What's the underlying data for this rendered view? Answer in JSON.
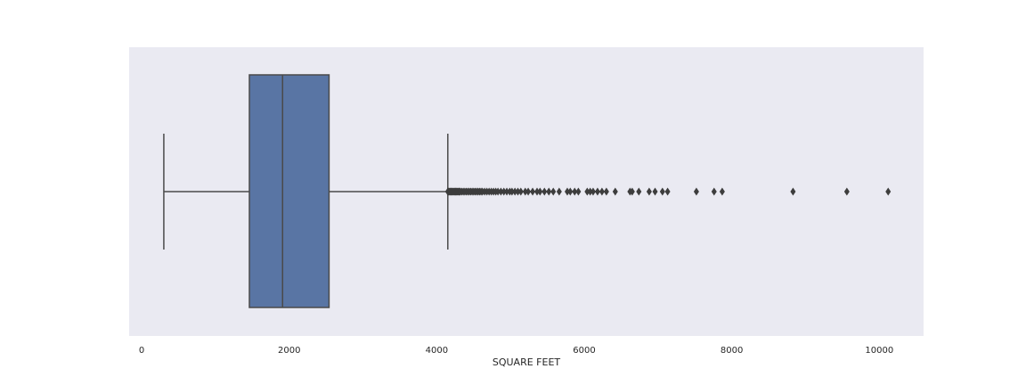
{
  "chart_data": {
    "type": "box",
    "orientation": "horizontal",
    "title": "",
    "xlabel": "SQUARE FEET",
    "ylabel": "",
    "xlim": [
      -170,
      10600
    ],
    "xticks": [
      0,
      2000,
      4000,
      6000,
      8000,
      10000
    ],
    "xtick_labels": [
      "0",
      "2000",
      "4000",
      "6000",
      "8000",
      "10000"
    ],
    "grid": false,
    "box": {
      "whisker_low": 300,
      "q1": 1460,
      "median": 1910,
      "q3": 2540,
      "whisker_high": 4150
    },
    "outliers": [
      4150,
      4160,
      4170,
      4180,
      4190,
      4200,
      4210,
      4220,
      4230,
      4240,
      4250,
      4260,
      4270,
      4280,
      4290,
      4300,
      4310,
      4320,
      4340,
      4360,
      4380,
      4400,
      4420,
      4440,
      4460,
      4480,
      4500,
      4520,
      4540,
      4560,
      4580,
      4600,
      4620,
      4650,
      4680,
      4710,
      4740,
      4770,
      4800,
      4830,
      4870,
      4910,
      4950,
      4990,
      5020,
      5060,
      5100,
      5140,
      5200,
      5240,
      5300,
      5360,
      5400,
      5460,
      5520,
      5580,
      5660,
      5770,
      5810,
      5870,
      5920,
      6040,
      6080,
      6120,
      6180,
      6240,
      6300,
      6420,
      6620,
      6650,
      6740,
      6880,
      6960,
      7060,
      7130,
      7520,
      7760,
      7870,
      8830,
      9560,
      10120
    ],
    "colors": {
      "box_fill": "#5975a4",
      "line": "#4a4a4a",
      "background": "#eaeaf2",
      "outlier": "#3d3d3d"
    }
  }
}
